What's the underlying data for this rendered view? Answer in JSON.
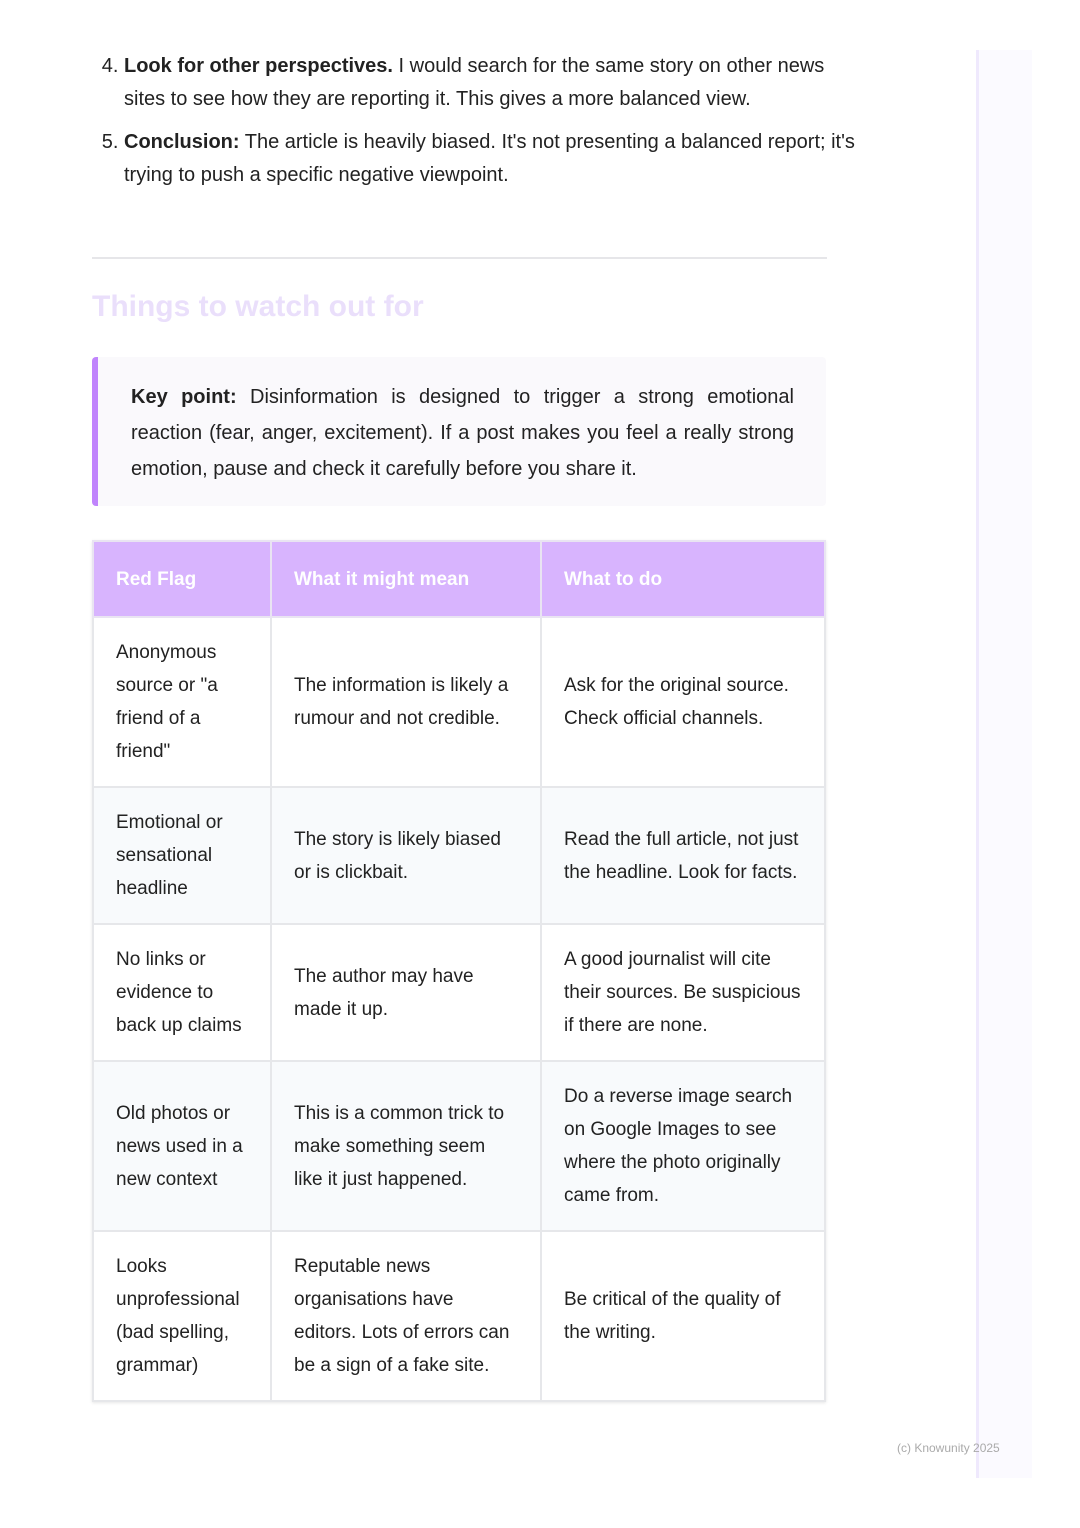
{
  "list": [
    {
      "number": 4,
      "bold": "Look for other perspectives.",
      "text": " I would search for the same story on other news sites to see how they are reporting it. This gives a more balanced view."
    },
    {
      "number": 5,
      "bold": "Conclusion:",
      "text": " The article is heavily biased. It's not presenting a balanced report; it's trying to push a specific negative viewpoint."
    }
  ],
  "heading": "Things to watch out for",
  "callout": {
    "bold": "Key point:",
    "text": " Disinformation is designed to trigger a strong emotional reaction (fear, anger, excitement). If a post makes you feel a really strong emotion, pause and check it carefully before you share it."
  },
  "table": {
    "headers": [
      "Red Flag",
      "What it might mean",
      "What to do"
    ],
    "rows": [
      [
        "Anonymous source or \"a friend of a friend\"",
        "The information is likely a rumour and not credible.",
        "Ask for the original source. Check official channels."
      ],
      [
        "Emotional or sensational headline",
        "The story is likely biased or is clickbait.",
        "Read the full article, not just the headline. Look for facts."
      ],
      [
        "No links or evidence to back up claims",
        "The author may have made it up.",
        "A good journalist will cite their sources. Be suspicious if there are none."
      ],
      [
        "Old photos or news used in a new context",
        "This is a common trick to make something seem like it just happened.",
        "Do a reverse image search on Google Images to see where the photo originally came from."
      ],
      [
        "Looks unprofessional (bad spelling, grammar)",
        "Reputable news organisations have editors. Lots of errors can be a sign of a fake site.",
        "Be critical of the quality of the writing."
      ]
    ]
  },
  "footer": "(c) Knowunity 2025",
  "colors": {
    "accent": "#c084fc",
    "table_header": "#d8b4fe",
    "heading": "#eadffb"
  }
}
